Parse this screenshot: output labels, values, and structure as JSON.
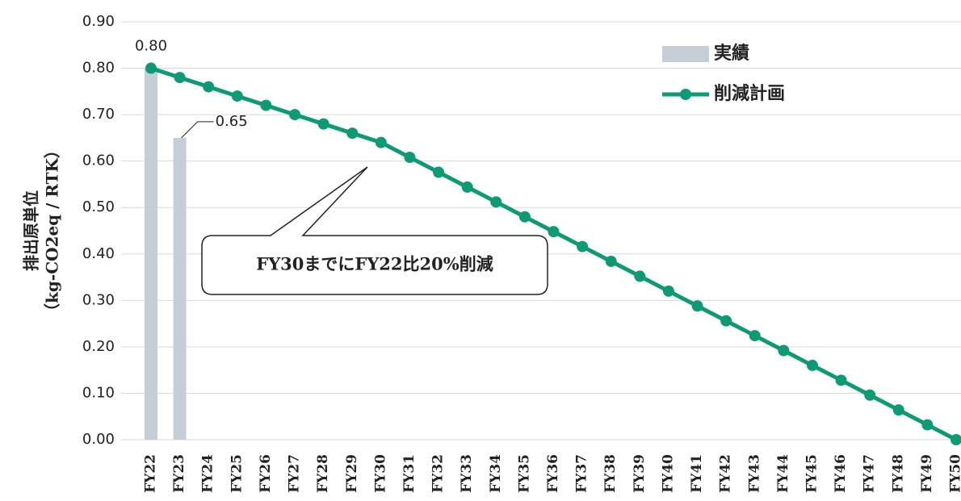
{
  "chart_data": {
    "type": "bar_line",
    "y_label": [
      "排出原単位",
      "（kg-CO2eq / RTK）"
    ],
    "annotation": "FY30までにFY22比20%削減",
    "categories": [
      "FY22",
      "FY23",
      "FY24",
      "FY25",
      "FY26",
      "FY27",
      "FY28",
      "FY29",
      "FY30",
      "FY31",
      "FY32",
      "FY33",
      "FY34",
      "FY35",
      "FY36",
      "FY37",
      "FY38",
      "FY39",
      "FY40",
      "FY41",
      "FY42",
      "FY43",
      "FY44",
      "FY45",
      "FY46",
      "FY47",
      "FY48",
      "FY49",
      "FY50"
    ],
    "series": [
      {
        "name": "実績",
        "type": "bar",
        "color": "#c5ced6",
        "values": [
          0.8,
          0.65,
          null,
          null,
          null,
          null,
          null,
          null,
          null,
          null,
          null,
          null,
          null,
          null,
          null,
          null,
          null,
          null,
          null,
          null,
          null,
          null,
          null,
          null,
          null,
          null,
          null,
          null,
          null
        ],
        "value_labels": [
          "0.80",
          "0.65",
          null,
          null,
          null,
          null,
          null,
          null,
          null,
          null,
          null,
          null,
          null,
          null,
          null,
          null,
          null,
          null,
          null,
          null,
          null,
          null,
          null,
          null,
          null,
          null,
          null,
          null,
          null
        ]
      },
      {
        "name": "削減計画",
        "type": "line",
        "color": "#0f9a76",
        "values": [
          0.8,
          0.78,
          0.76,
          0.74,
          0.72,
          0.7,
          0.68,
          0.66,
          0.64,
          0.608,
          0.576,
          0.544,
          0.512,
          0.48,
          0.448,
          0.416,
          0.384,
          0.352,
          0.32,
          0.288,
          0.256,
          0.224,
          0.192,
          0.16,
          0.128,
          0.096,
          0.064,
          0.032,
          0
        ]
      }
    ],
    "ylim": [
      0,
      0.9
    ],
    "yticks": [
      {
        "value": 0,
        "label": "0.00"
      },
      {
        "value": 0.1,
        "label": "0.10"
      },
      {
        "value": 0.2,
        "label": "0.20"
      },
      {
        "value": 0.3,
        "label": "0.30"
      },
      {
        "value": 0.4,
        "label": "0.40"
      },
      {
        "value": 0.5,
        "label": "0.50"
      },
      {
        "value": 0.6,
        "label": "0.60"
      },
      {
        "value": 0.7,
        "label": "0.70"
      },
      {
        "value": 0.8,
        "label": "0.80"
      },
      {
        "value": 0.9,
        "label": "0.90"
      }
    ],
    "grid": true,
    "legend": "upper right"
  }
}
